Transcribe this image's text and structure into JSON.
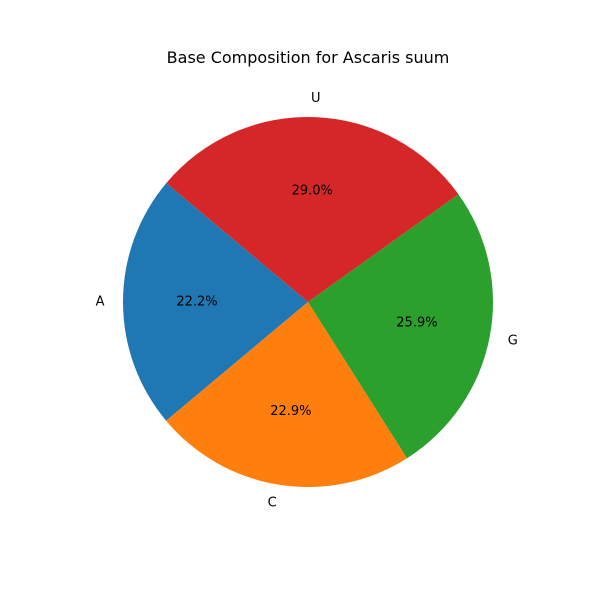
{
  "chart_data": {
    "type": "pie",
    "title": "Base Composition for Ascaris suum",
    "categories": [
      "A",
      "C",
      "G",
      "U"
    ],
    "values": [
      22.2,
      22.9,
      25.9,
      29.0
    ],
    "percent_labels": [
      "22.2%",
      "22.9%",
      "25.9%",
      "29.0%"
    ],
    "colors": [
      "#1f77b4",
      "#ff7f0e",
      "#2ca02c",
      "#d62728"
    ],
    "start_angle_deg": 140,
    "direction": "counterclockwise",
    "legend": "none"
  }
}
